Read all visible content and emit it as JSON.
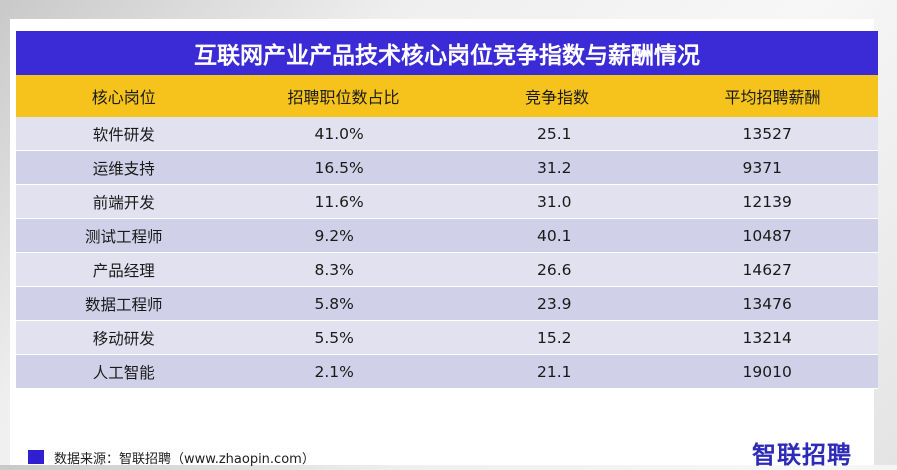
{
  "chart_data": {
    "type": "table",
    "title": "互联网产业产品技术核心岗位竞争指数与薪酬情况",
    "columns": [
      "核心岗位",
      "招聘职位数占比",
      "竞争指数",
      "平均招聘薪酬"
    ],
    "rows": [
      [
        "软件研发",
        "41.0%",
        "25.1",
        "13527"
      ],
      [
        "运维支持",
        "16.5%",
        "31.2",
        "9371"
      ],
      [
        "前端开发",
        "11.6%",
        "31.0",
        "12139"
      ],
      [
        "测试工程师",
        "9.2%",
        "40.1",
        "10487"
      ],
      [
        "产品经理",
        "8.3%",
        "26.6",
        "14627"
      ],
      [
        "数据工程师",
        "5.8%",
        "23.9",
        "13476"
      ],
      [
        "移动研发",
        "5.5%",
        "15.2",
        "13214"
      ],
      [
        "人工智能",
        "2.1%",
        "21.1",
        "19010"
      ]
    ]
  },
  "footer": {
    "source": "数据来源：智联招聘（www.zhaopin.com）",
    "logo_text": "智联招聘"
  },
  "colors": {
    "title_bg": "#3b2bd6",
    "header_bg": "#f5c31c",
    "row_odd": "#e1e1ef",
    "row_even": "#d0d0e8",
    "legend": "#2f1fd0",
    "logo": "#2c2ab8"
  }
}
